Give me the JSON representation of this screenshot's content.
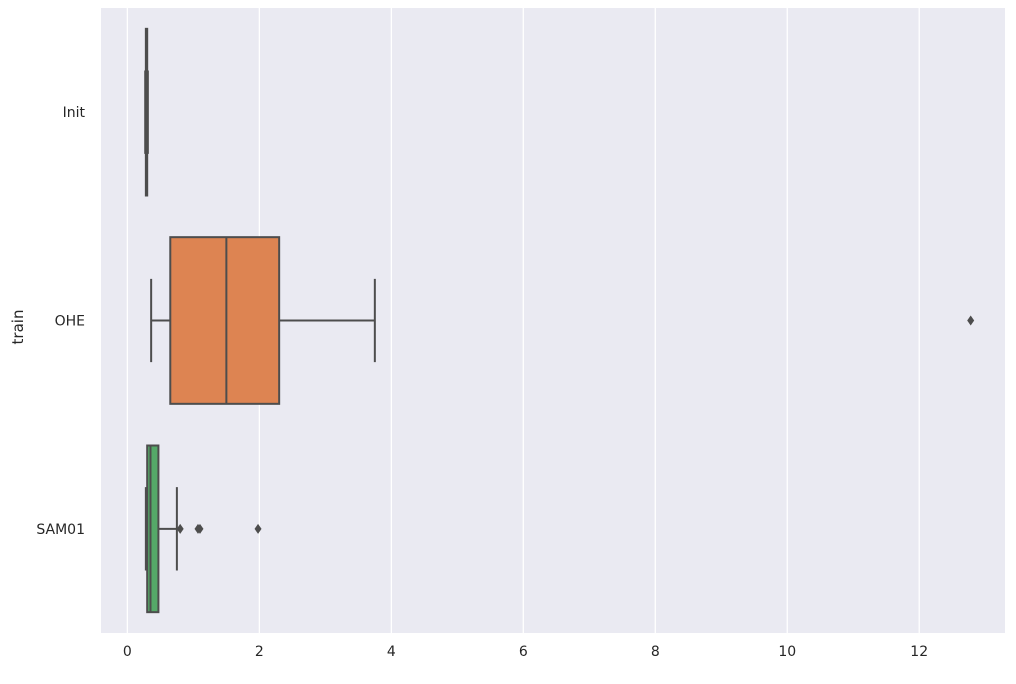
{
  "chart_data": {
    "type": "boxplot",
    "orientation": "horizontal",
    "title": "",
    "xlabel": "",
    "ylabel": "train",
    "xlim": [
      -0.4,
      13.3
    ],
    "xticks": [
      0,
      2,
      4,
      6,
      8,
      10,
      12
    ],
    "grid": true,
    "background": "#eaeaf2",
    "grid_color": "#ffffff",
    "line_color": "#4d4d4d",
    "categories": [
      "Init",
      "OHE",
      "SAM01"
    ],
    "series": [
      {
        "category": "Init",
        "color": "#4c72b0",
        "whisker_low": 0.27,
        "q1": 0.28,
        "median": 0.29,
        "q3": 0.3,
        "whisker_high": 0.31,
        "outliers": []
      },
      {
        "category": "OHE",
        "color": "#dd8452",
        "whisker_low": 0.36,
        "q1": 0.65,
        "median": 1.5,
        "q3": 2.3,
        "whisker_high": 3.75,
        "outliers": [
          12.78
        ]
      },
      {
        "category": "SAM01",
        "color": "#55a868",
        "whisker_low": 0.28,
        "q1": 0.3,
        "median": 0.35,
        "q3": 0.47,
        "whisker_high": 0.75,
        "outliers": [
          0.8,
          1.07,
          1.1,
          1.98
        ]
      }
    ]
  }
}
